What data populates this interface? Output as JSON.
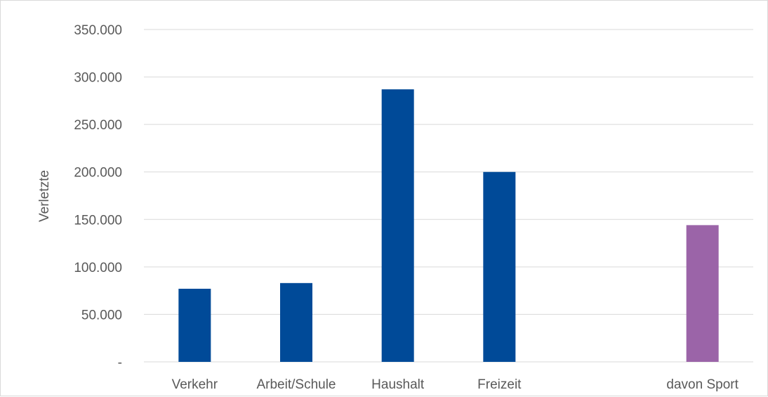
{
  "chart_data": {
    "type": "bar",
    "title": "",
    "xlabel": "",
    "ylabel": "Verletzte",
    "ylim": [
      0,
      350000
    ],
    "yticks": [
      {
        "value": 0,
        "label": "-"
      },
      {
        "value": 50000,
        "label": "50.000"
      },
      {
        "value": 100000,
        "label": "100.000"
      },
      {
        "value": 150000,
        "label": "150.000"
      },
      {
        "value": 200000,
        "label": "200.000"
      },
      {
        "value": 250000,
        "label": "250.000"
      },
      {
        "value": 300000,
        "label": "300.000"
      },
      {
        "value": 350000,
        "label": "350.000"
      }
    ],
    "grid": true,
    "categories": [
      "Verkehr",
      "Arbeit/Schule",
      "Haushalt",
      "Freizeit",
      "",
      "davon Sport"
    ],
    "values": [
      77000,
      83000,
      287000,
      200000,
      null,
      144000
    ],
    "colors": [
      "#004a98",
      "#004a98",
      "#004a98",
      "#004a98",
      null,
      "#9b64a8"
    ]
  }
}
